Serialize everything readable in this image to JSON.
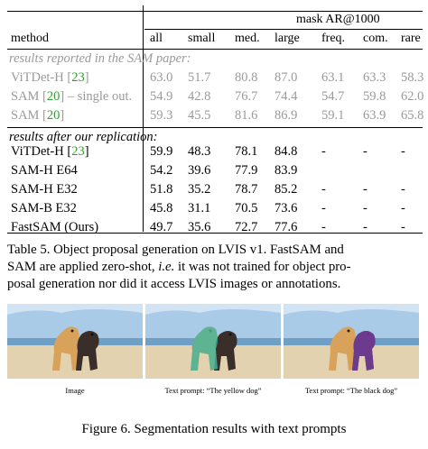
{
  "table": {
    "group_header": "mask AR@1000",
    "columns": [
      "method",
      "all",
      "small",
      "med.",
      "large",
      "freq.",
      "com.",
      "rare"
    ],
    "section1_title": "results reported in the SAM paper:",
    "section1_rows": [
      {
        "method_pre": "ViTDet-H [",
        "ref": "23",
        "method_post": "]",
        "values": [
          "63.0",
          "51.7",
          "80.8",
          "87.0",
          "63.1",
          "63.3",
          "58.3"
        ]
      },
      {
        "method_pre": "SAM [",
        "ref": "20",
        "method_post": "] – single out.",
        "values": [
          "54.9",
          "42.8",
          "76.7",
          "74.4",
          "54.7",
          "59.8",
          "62.0"
        ]
      },
      {
        "method_pre": "SAM [",
        "ref": "20",
        "method_post": "]",
        "values": [
          "59.3",
          "45.5",
          "81.6",
          "86.9",
          "59.1",
          "63.9",
          "65.8"
        ]
      }
    ],
    "section2_title": "results after our replication:",
    "section2_rows": [
      {
        "method_pre": "ViTDet-H [",
        "ref": "23",
        "method_post": "]",
        "values": [
          "59.9",
          "48.3",
          "78.1",
          "84.8",
          "-",
          "-",
          "-"
        ]
      },
      {
        "method_pre": "SAM-H E64",
        "ref": "",
        "method_post": "",
        "values": [
          "54.2",
          "39.6",
          "77.9",
          "83.9",
          "",
          "",
          ""
        ]
      },
      {
        "method_pre": "SAM-H E32",
        "ref": "",
        "method_post": "",
        "values": [
          "51.8",
          "35.2",
          "78.7",
          "85.2",
          "-",
          "-",
          "-"
        ]
      },
      {
        "method_pre": "SAM-B E32",
        "ref": "",
        "method_post": "",
        "values": [
          "45.8",
          "31.1",
          "70.5",
          "73.6",
          "-",
          "-",
          "-"
        ]
      },
      {
        "method_pre": "FastSAM (Ours)",
        "ref": "",
        "method_post": "",
        "values": [
          "49.7",
          "35.6",
          "72.7",
          "77.6",
          "-",
          "-",
          "-"
        ]
      }
    ]
  },
  "caption": {
    "line1": "Table 5.  Object proposal generation on LVIS v1.  FastSAM and",
    "line2_pre": "SAM are applied zero-shot, ",
    "line2_italic": "i.e.",
    "line2_post": " it was not trained for object pro-",
    "line3": "posal generation nor did it access LVIS images or annotations."
  },
  "figure": {
    "images": [
      {
        "label": "Image",
        "mask": "none"
      },
      {
        "label": "Text prompt: “The yellow dog”",
        "mask": "yellow"
      },
      {
        "label": "Text prompt: “The black dog”",
        "mask": "black"
      }
    ],
    "caption": "Figure 6. Segmentation results with text prompts",
    "colors": {
      "sky": "#a9cbe8",
      "sea": "#6f9fc4",
      "sand": "#e2d2b0",
      "yellow_dog": "#d9a25a",
      "black_dog": "#3a2e2a",
      "green_mask": "#3fb8a0",
      "purple_mask": "#7a3fa8"
    }
  }
}
